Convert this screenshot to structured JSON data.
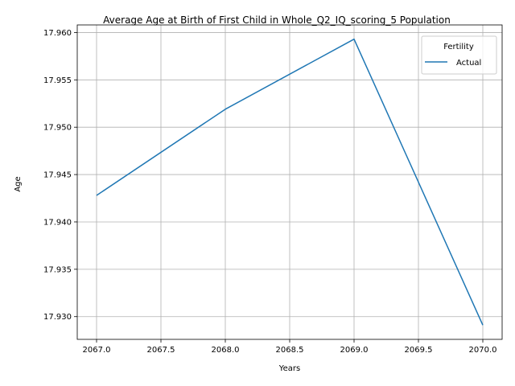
{
  "chart_data": {
    "type": "line",
    "title": "Average Age at Birth of First Child in Whole_Q2_IQ_scoring_5 Population",
    "xlabel": "Years",
    "ylabel": "Age",
    "x": [
      2067,
      2068,
      2069,
      2070
    ],
    "series": [
      {
        "name": "Actual",
        "color": "#1f77b4",
        "values": [
          17.9428,
          17.9519,
          17.9593,
          17.9291
        ]
      }
    ],
    "xlim": [
      2066.85,
      2070.15
    ],
    "ylim": [
      17.9276,
      17.9608
    ],
    "xticks": [
      2067.0,
      2067.5,
      2068.0,
      2068.5,
      2069.0,
      2069.5,
      2070.0
    ],
    "xtick_labels": [
      "2067.0",
      "2067.5",
      "2068.0",
      "2068.5",
      "2069.0",
      "2069.5",
      "2070.0"
    ],
    "yticks": [
      17.93,
      17.935,
      17.94,
      17.945,
      17.95,
      17.955,
      17.96
    ],
    "ytick_labels": [
      "17.930",
      "17.935",
      "17.940",
      "17.945",
      "17.950",
      "17.955",
      "17.960"
    ],
    "grid": true,
    "legend": {
      "title": "Fertility",
      "position": "top-right"
    }
  }
}
